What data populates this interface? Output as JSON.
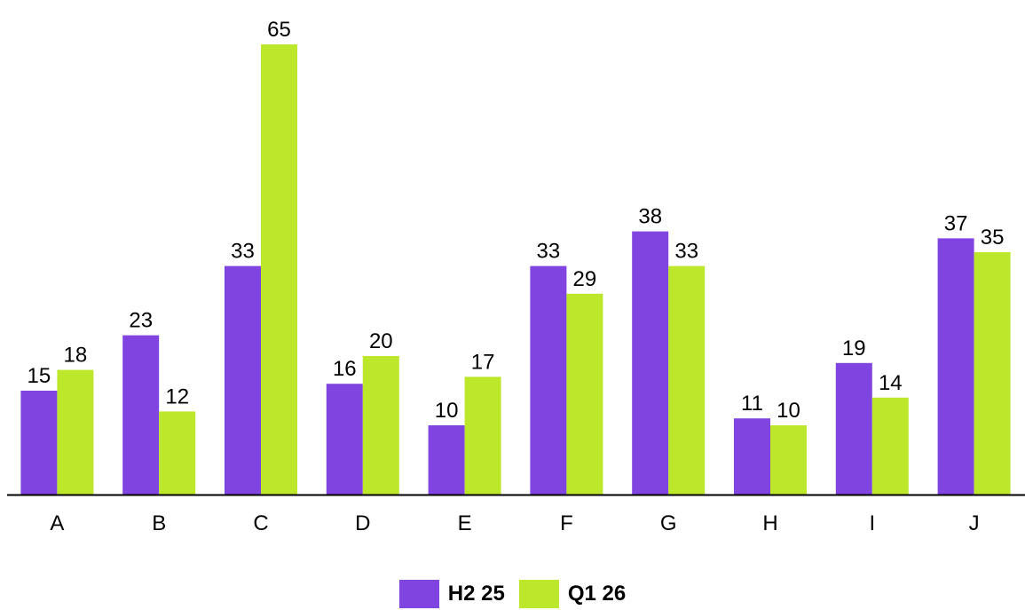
{
  "chart_data": {
    "type": "bar",
    "categories": [
      "A",
      "B",
      "C",
      "D",
      "E",
      "F",
      "G",
      "H",
      "I",
      "J"
    ],
    "series": [
      {
        "name": "H2 25",
        "color": "#8044e0",
        "values": [
          15,
          23,
          33,
          16,
          10,
          33,
          38,
          11,
          19,
          37
        ]
      },
      {
        "name": "Q1 26",
        "color": "#bde72b",
        "values": [
          18,
          12,
          65,
          20,
          17,
          29,
          33,
          10,
          14,
          35
        ]
      }
    ],
    "data_labels": [
      [
        "15",
        "23",
        "33",
        "16",
        "10",
        "33",
        "38",
        "11",
        "19",
        "37"
      ],
      [
        "18",
        "12",
        "65",
        "20",
        "17",
        "29",
        "33",
        "10",
        "14",
        "35"
      ]
    ],
    "title": "",
    "xlabel": "",
    "ylabel": "",
    "ylim": [
      0,
      70
    ],
    "grid": false,
    "legend_position": "bottom-center"
  },
  "legend": {
    "items": [
      {
        "label": "H2 25",
        "color": "#8044e0"
      },
      {
        "label": "Q1 26",
        "color": "#bde72b"
      }
    ]
  }
}
